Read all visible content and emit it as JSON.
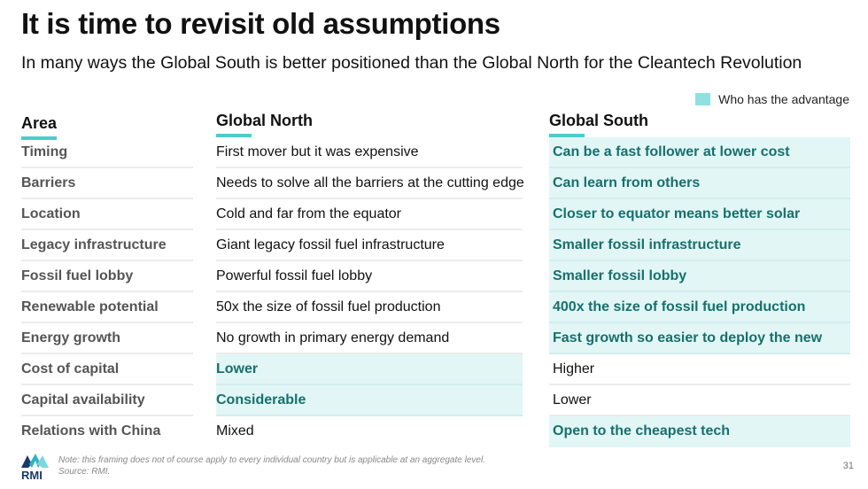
{
  "title": "It is time to revisit old assumptions",
  "subtitle": "In many ways the Global South is better positioned than the Global North for the Cleantech Revolution",
  "legend": {
    "label": "Who has the advantage",
    "color": "#8fe0e0"
  },
  "headers": {
    "area": "Area",
    "north": "Global North",
    "south": "Global South"
  },
  "rows": [
    {
      "area": "Timing",
      "north": "First mover but it was expensive",
      "south": "Can be a fast follower at lower cost",
      "advantage": "south"
    },
    {
      "area": "Barriers",
      "north": "Needs to solve all the barriers at the cutting edge",
      "south": "Can learn from others",
      "advantage": "south"
    },
    {
      "area": "Location",
      "north": "Cold and far from the equator",
      "south": "Closer to equator means better solar",
      "advantage": "south"
    },
    {
      "area": "Legacy infrastructure",
      "north": "Giant legacy fossil fuel infrastructure",
      "south": "Smaller fossil infrastructure",
      "advantage": "south"
    },
    {
      "area": "Fossil fuel lobby",
      "north": "Powerful fossil fuel lobby",
      "south": "Smaller fossil lobby",
      "advantage": "south"
    },
    {
      "area": "Renewable potential",
      "north": "50x the size of fossil fuel production",
      "south": "400x the size of fossil fuel production",
      "advantage": "south"
    },
    {
      "area": "Energy growth",
      "north": "No growth in primary energy demand",
      "south": "Fast growth so easier to deploy the new",
      "advantage": "south"
    },
    {
      "area": "Cost of capital",
      "north": "Lower",
      "south": "Higher",
      "advantage": "north"
    },
    {
      "area": "Capital availability",
      "north": "Considerable",
      "south": "Lower",
      "advantage": "north"
    },
    {
      "area": "Relations with China",
      "north": "Mixed",
      "south": "Open to the cheapest tech",
      "advantage": "south"
    }
  ],
  "footer": {
    "logo": "RMI",
    "note": "Note: this framing does not of course apply to every individual country but is applicable at an aggregate level.",
    "source": "Source: RMI.",
    "page": "31"
  },
  "colors": {
    "accent": "#4ccccc",
    "advantage_bg": "#e2f6f6",
    "advantage_text": "#17706c"
  }
}
